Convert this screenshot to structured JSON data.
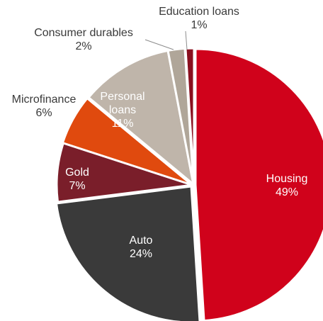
{
  "chart_data": {
    "type": "pie",
    "title": "",
    "start_angle_deg": 0,
    "direction": "clockwise",
    "slices": [
      {
        "label": "Housing",
        "value": 49,
        "display": "49%",
        "color": "#d0021b",
        "label_color": "#ffffff",
        "label_pos": "inside"
      },
      {
        "label": "Auto",
        "value": 24,
        "display": "24%",
        "color": "#3a3a3a",
        "label_color": "#ffffff",
        "label_pos": "inside"
      },
      {
        "label": "Gold",
        "value": 7,
        "display": "7%",
        "color": "#7a1e2a",
        "label_color": "#ffffff",
        "label_pos": "inside"
      },
      {
        "label": "Microfinance",
        "value": 6,
        "display": "6%",
        "color": "#e04a0e",
        "label_color": "#3a3a3a",
        "label_pos": "outside"
      },
      {
        "label": "Personal loans",
        "value": 11,
        "display": "11%",
        "color": "#bfb5aa",
        "label_color": "#ffffff",
        "label_pos": "inside"
      },
      {
        "label": "Consumer durables",
        "value": 2,
        "display": "2%",
        "color": "#b0a699",
        "label_color": "#3a3a3a",
        "label_pos": "outside"
      },
      {
        "label": "Education loans",
        "value": 1,
        "display": "1%",
        "color": "#8a0f1e",
        "label_color": "#3a3a3a",
        "label_pos": "outside"
      }
    ]
  }
}
